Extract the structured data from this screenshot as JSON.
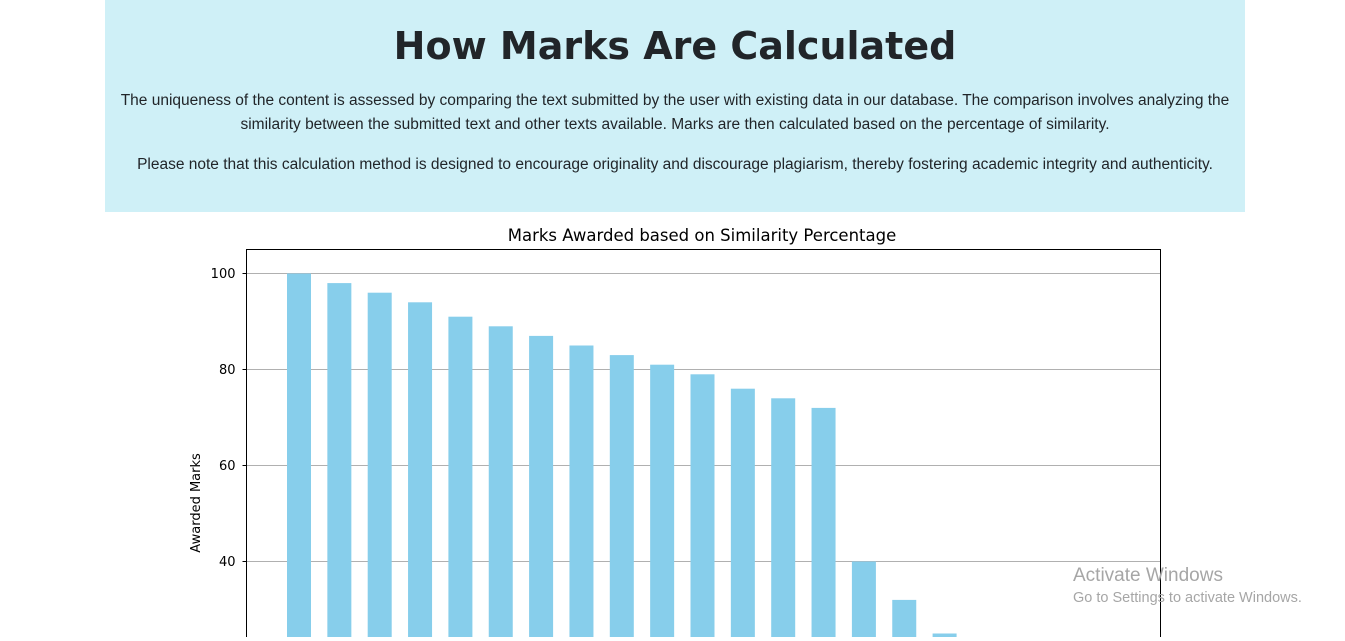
{
  "info": {
    "title": "How Marks Are Calculated",
    "paragraph1": "The uniqueness of the content is assessed by comparing the text submitted by the user with existing data in our database. The comparison involves analyzing the similarity between the submitted text and other texts available. Marks are then calculated based on the percentage of similarity.",
    "paragraph2": "Please note that this calculation method is designed to encourage originality and discourage plagiarism, thereby fostering academic integrity and authenticity."
  },
  "chart_data": {
    "type": "bar",
    "title": "Marks Awarded based on Similarity Percentage",
    "xlabel": "",
    "ylabel": "Awarded Marks",
    "values": [
      100,
      98,
      96,
      94,
      91,
      89,
      87,
      85,
      83,
      81,
      79,
      76,
      74,
      72,
      40,
      32,
      25
    ],
    "ylim_visible": [
      24,
      105
    ],
    "yticks": [
      40,
      60,
      80,
      100
    ],
    "grid": "horizontal",
    "bar_color": "#87ceeb"
  },
  "watermark": {
    "title": "Activate Windows",
    "subtitle": "Go to Settings to activate Windows."
  }
}
